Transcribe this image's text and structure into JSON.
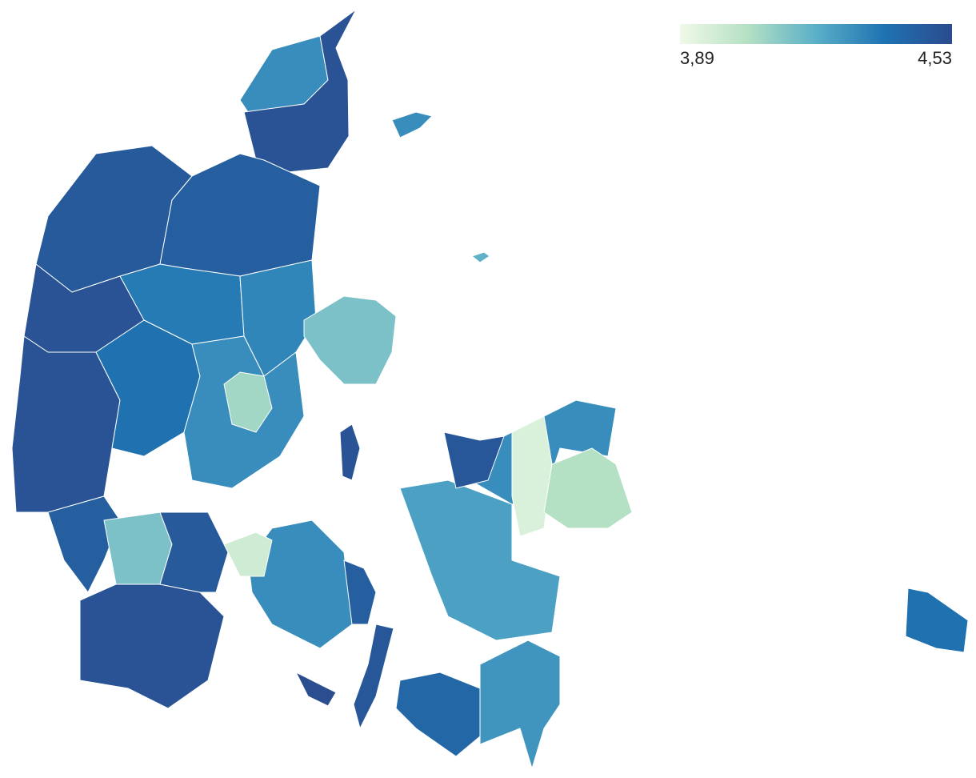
{
  "legend": {
    "min": {
      "value": 3.89,
      "label": "3,89"
    },
    "max": {
      "value": 4.53,
      "label": "4,53"
    },
    "colors": [
      "#f0f9e8",
      "#b4e0c4",
      "#5aafc8",
      "#1f73b2",
      "#2b4b8d"
    ]
  },
  "regions": {
    "values": [
      4.3,
      4.5,
      4.47,
      4.45,
      4.5,
      4.35,
      4.32,
      4.5,
      4.38,
      4.3,
      4.08,
      4.45,
      4.15,
      4.5,
      4.47,
      4.3,
      4.45,
      3.98,
      4.25,
      4.3,
      3.95,
      4.05,
      4.48,
      4.42,
      4.28,
      4.15,
      4.38,
      4.5,
      4.3,
      4.2,
      4.48,
      4.52
    ]
  }
}
